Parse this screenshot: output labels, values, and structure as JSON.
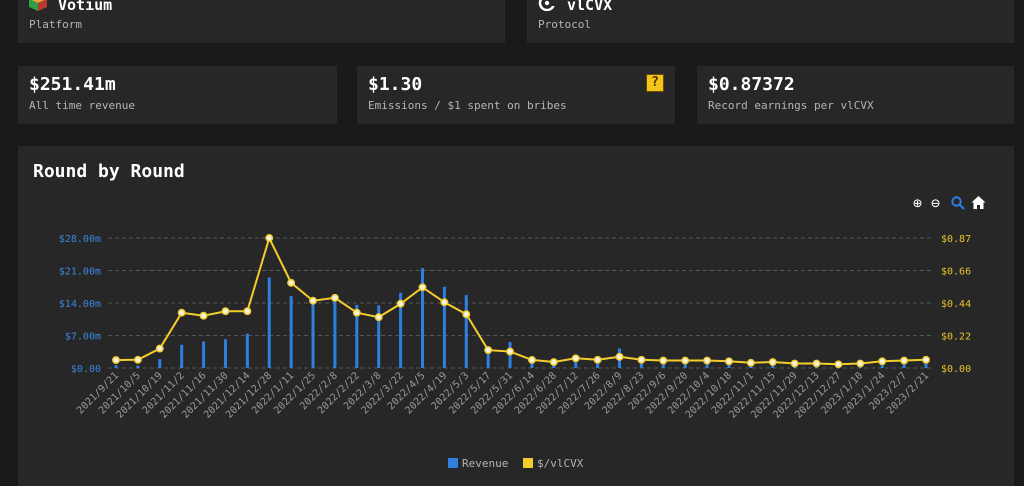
{
  "cards": {
    "platform": {
      "title": "Votium",
      "subtitle": "Platform",
      "icon": "cube-icon"
    },
    "protocol": {
      "title": "vlCVX",
      "subtitle": "Protocol",
      "icon": "convex-logo-icon"
    }
  },
  "stats": [
    {
      "value": "$251.41m",
      "label": "All time revenue"
    },
    {
      "value": "$1.30",
      "label": "Emissions / $1 spent on bribes",
      "badge": "?"
    },
    {
      "value": "$0.87372",
      "label": "Record earnings per vlCVX"
    }
  ],
  "chart_section": {
    "title": "Round by Round",
    "toolbar": [
      "zoom-in-icon",
      "zoom-out-icon",
      "zoom-select-icon",
      "home-icon"
    ]
  },
  "colors": {
    "revenue": "#2d7fe0",
    "per_vlcvx": "#f3cd2c",
    "revenue_axis": "#3d86e0",
    "per_axis": "#e7c12b"
  },
  "chart_data": {
    "type": "bar",
    "title": "Round by Round",
    "x": [
      "2021/9/21",
      "2021/10/5",
      "2021/10/19",
      "2021/11/2",
      "2021/11/16",
      "2021/11/30",
      "2021/12/14",
      "2021/12/28",
      "2022/1/11",
      "2022/1/25",
      "2022/2/8",
      "2022/2/22",
      "2022/3/8",
      "2022/3/22",
      "2022/4/5",
      "2022/4/19",
      "2022/5/3",
      "2022/5/17",
      "2022/5/31",
      "2022/6/14",
      "2022/6/28",
      "2022/7/12",
      "2022/7/26",
      "2022/8/9",
      "2022/8/23",
      "2022/9/6",
      "2022/9/20",
      "2022/10/4",
      "2022/10/18",
      "2022/11/1",
      "2022/11/15",
      "2022/11/29",
      "2022/12/13",
      "2022/12/27",
      "2023/1/10",
      "2023/1/24",
      "2023/2/7",
      "2023/2/21"
    ],
    "series": [
      {
        "name": "Revenue",
        "axis": "left",
        "render": "bar",
        "values": [
          0.6,
          0.5,
          1.9,
          5.0,
          5.7,
          6.2,
          7.4,
          19.5,
          15.5,
          15.0,
          15.6,
          13.6,
          13.5,
          16.2,
          21.5,
          17.5,
          15.7,
          4.7,
          5.6,
          1.7,
          1.2,
          1.6,
          1.6,
          4.2,
          1.4,
          1.6,
          1.8,
          1.7,
          1.5,
          1.6,
          1.5,
          1.4,
          1.4,
          1.3,
          1.5,
          2.0,
          2.1,
          2.1
        ]
      },
      {
        "name": "$/vlCVX",
        "axis": "right",
        "render": "line",
        "values": [
          0.053,
          0.055,
          0.13,
          0.37,
          0.35,
          0.38,
          0.38,
          0.87,
          0.57,
          0.45,
          0.47,
          0.37,
          0.34,
          0.43,
          0.54,
          0.44,
          0.36,
          0.12,
          0.11,
          0.054,
          0.04,
          0.065,
          0.055,
          0.075,
          0.055,
          0.05,
          0.05,
          0.05,
          0.045,
          0.035,
          0.04,
          0.03,
          0.03,
          0.025,
          0.03,
          0.045,
          0.05,
          0.055
        ]
      }
    ],
    "y_left": {
      "ticks": [
        "$0.00",
        "$7.00m",
        "$14.00m",
        "$21.00m",
        "$28.00m"
      ],
      "range": [
        0,
        28
      ]
    },
    "y_right": {
      "ticks": [
        "$0.00",
        "$0.22",
        "$0.44",
        "$0.66",
        "$0.87"
      ],
      "range": [
        0,
        0.87
      ]
    },
    "grid": "horizontal dashed",
    "legend": "bottom-center"
  }
}
